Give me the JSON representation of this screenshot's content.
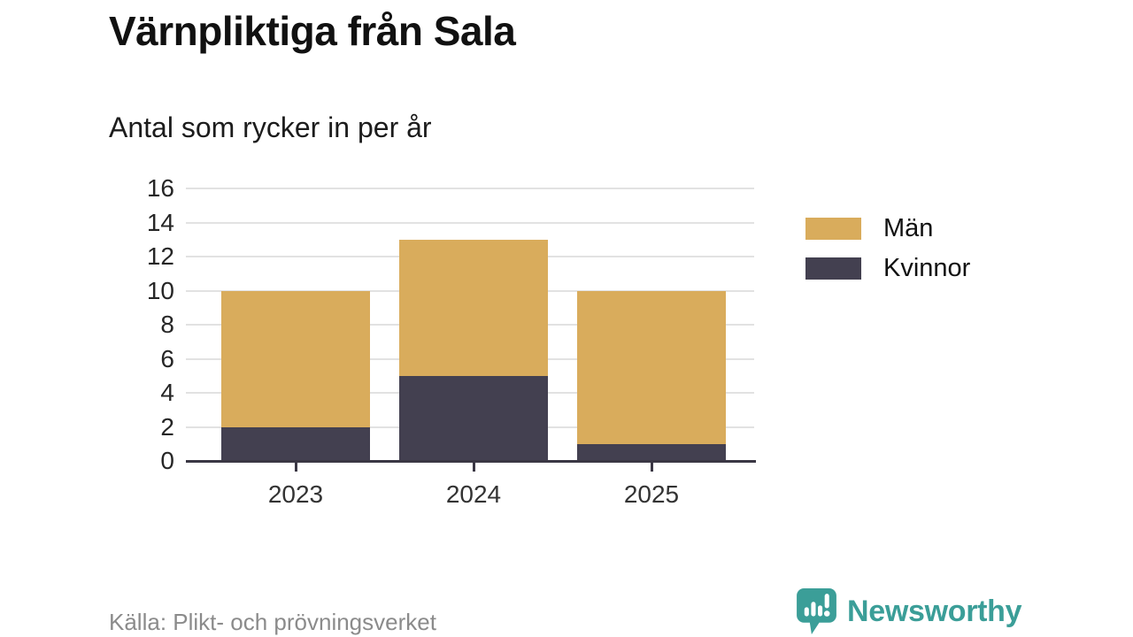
{
  "header": {
    "title": "Värnpliktiga från Sala",
    "subtitle": "Antal som rycker in per år"
  },
  "chart_data": {
    "type": "bar",
    "stacked": true,
    "title": "Värnpliktiga från Sala",
    "subtitle": "Antal som rycker in per år",
    "categories": [
      "2023",
      "2024",
      "2025"
    ],
    "series": [
      {
        "name": "Män",
        "color": "#d9ac5c",
        "values": [
          8,
          8,
          9
        ]
      },
      {
        "name": "Kvinnor",
        "color": "#434050",
        "values": [
          2,
          5,
          1
        ]
      }
    ],
    "totals": [
      10,
      13,
      10
    ],
    "xlabel": "",
    "ylabel": "",
    "ylim": [
      0,
      16
    ],
    "yticks": [
      0,
      2,
      4,
      6,
      8,
      10,
      12,
      14,
      16
    ],
    "grid": true,
    "legend_position": "right"
  },
  "legend": {
    "items": [
      {
        "label": "Män",
        "color": "#d9ac5c"
      },
      {
        "label": "Kvinnor",
        "color": "#434050"
      }
    ]
  },
  "footer": {
    "source": "Källa: Plikt- och prövningsverket",
    "brand": "Newsworthy"
  },
  "colors": {
    "men": "#d9ac5c",
    "women": "#434050",
    "gridline": "#e2e2e2",
    "axis": "#3a3744",
    "brand_teal": "#3b9e98",
    "source_text": "#8b8b8b",
    "background": "#ffffff"
  }
}
